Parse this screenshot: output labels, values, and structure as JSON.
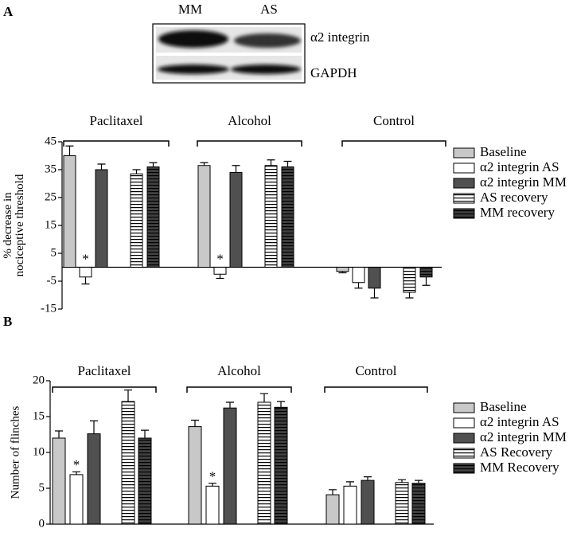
{
  "figure": {
    "panel_labels": [
      "A",
      "B"
    ],
    "blot": {
      "lanes": [
        "MM",
        "AS"
      ],
      "bands": [
        "α2 integrin",
        "GAPDH"
      ]
    }
  },
  "chart_data": [
    {
      "type": "bar",
      "y_label": [
        "% decrease in",
        "nociceptive threshold"
      ],
      "categories": [
        "Paclitaxel",
        "Alcohol",
        "Control"
      ],
      "ylim": [
        -15,
        45
      ],
      "yticks": [
        45,
        35,
        25,
        15,
        5,
        -5,
        -15
      ],
      "legend": "right",
      "series": [
        {
          "name": "Baseline",
          "color": "#c8c8c8",
          "values": [
            40,
            36.5,
            -1.5
          ],
          "errors": [
            3.5,
            1,
            0.5
          ]
        },
        {
          "name": "α2 integrin AS",
          "color": "#ffffff",
          "values": [
            -3.5,
            -2.5,
            -5.5
          ],
          "errors": [
            2.5,
            1.5,
            2
          ],
          "annotations": [
            "*",
            "*",
            null
          ]
        },
        {
          "name": "α2 integrin MM",
          "color": "#505050",
          "values": [
            35,
            34,
            -7.5
          ],
          "errors": [
            2,
            2.5,
            3.5
          ]
        },
        {
          "name": "AS recovery",
          "color": "#ffffff",
          "hatch": "horizontal",
          "values": [
            33.5,
            36.5,
            -9
          ],
          "errors": [
            1.5,
            2,
            2
          ]
        },
        {
          "name": "MM recovery",
          "color": "#404040",
          "hatch": "horizontal",
          "values": [
            36,
            36,
            -3.5
          ],
          "errors": [
            1.5,
            2,
            3
          ]
        }
      ]
    },
    {
      "type": "bar",
      "y_label": [
        "Number of flinches"
      ],
      "categories": [
        "Paclitaxel",
        "Alcohol",
        "Control"
      ],
      "ylim": [
        0,
        20
      ],
      "yticks": [
        0,
        5,
        10,
        15,
        20
      ],
      "legend": "right",
      "series": [
        {
          "name": "Baseline",
          "color": "#c8c8c8",
          "values": [
            12,
            13.6,
            4.1
          ],
          "errors": [
            1,
            0.9,
            0.7
          ]
        },
        {
          "name": "α2 integrin AS",
          "color": "#ffffff",
          "values": [
            6.9,
            5.3,
            5.3
          ],
          "errors": [
            0.4,
            0.4,
            0.6
          ],
          "annotations": [
            "*",
            "*",
            null
          ]
        },
        {
          "name": "α2 integrin MM",
          "color": "#505050",
          "values": [
            12.6,
            16.2,
            6.1
          ],
          "errors": [
            1.8,
            0.8,
            0.5
          ]
        },
        {
          "name": "AS Recovery",
          "color": "#ffffff",
          "hatch": "horizontal",
          "values": [
            17.1,
            17,
            5.8
          ],
          "errors": [
            1.6,
            1.2,
            0.4
          ]
        },
        {
          "name": "MM Recovery",
          "color": "#404040",
          "hatch": "horizontal",
          "values": [
            12,
            16.3,
            5.7
          ],
          "errors": [
            1.1,
            0.8,
            0.4
          ]
        }
      ]
    }
  ]
}
